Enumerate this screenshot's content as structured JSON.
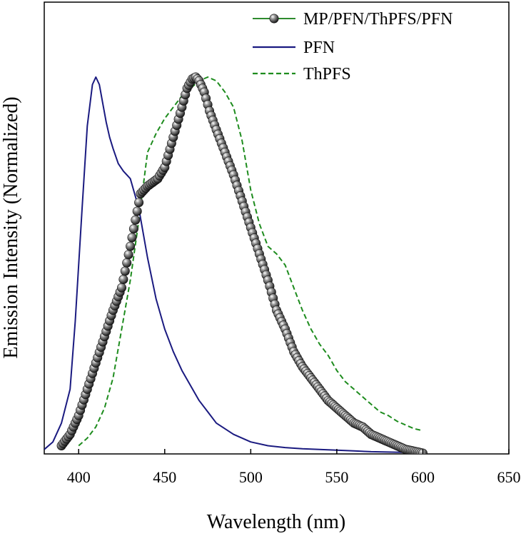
{
  "chart_data": {
    "type": "line",
    "title": "",
    "xlabel": "Wavelength (nm)",
    "ylabel": "Emission Intensity (Normalized)",
    "xlim": [
      380,
      650
    ],
    "ylim": [
      0,
      1.02
    ],
    "xticks": [
      "400",
      "450",
      "500",
      "550",
      "600",
      "650"
    ],
    "grid": false,
    "legend_position": "top-right",
    "series": [
      {
        "name": "MP/PFN/ThPFS/PFN",
        "color": "#3a3a3a",
        "line_color": "#2e8b2e",
        "marker": "sphere",
        "x": [
          390,
          395,
          400,
          405,
          410,
          415,
          420,
          425,
          430,
          433,
          436,
          440,
          443,
          446,
          450,
          455,
          460,
          463,
          466,
          468,
          470,
          473,
          476,
          480,
          485,
          490,
          495,
          500,
          505,
          510,
          515,
          520,
          525,
          530,
          535,
          540,
          545,
          550,
          555,
          560,
          565,
          570,
          575,
          580,
          585,
          590,
          595,
          600
        ],
        "y": [
          0.02,
          0.05,
          0.1,
          0.17,
          0.24,
          0.31,
          0.38,
          0.44,
          0.55,
          0.62,
          0.69,
          0.71,
          0.72,
          0.73,
          0.76,
          0.84,
          0.92,
          0.97,
          0.995,
          1.0,
          0.99,
          0.96,
          0.91,
          0.86,
          0.8,
          0.74,
          0.67,
          0.6,
          0.53,
          0.46,
          0.38,
          0.33,
          0.27,
          0.23,
          0.2,
          0.17,
          0.14,
          0.12,
          0.1,
          0.08,
          0.07,
          0.05,
          0.04,
          0.03,
          0.02,
          0.01,
          0.005,
          0.0
        ]
      },
      {
        "name": "PFN",
        "color": "#1a1a80",
        "x": [
          380,
          385,
          390,
          395,
          398,
          402,
          405,
          408,
          410,
          412,
          414,
          416,
          418,
          420,
          423,
          426,
          430,
          435,
          440,
          445,
          450,
          455,
          460,
          465,
          470,
          475,
          480,
          490,
          500,
          510,
          520,
          530,
          540,
          550,
          560,
          570,
          580,
          590
        ],
        "y": [
          0.01,
          0.03,
          0.08,
          0.17,
          0.35,
          0.65,
          0.87,
          0.98,
          1.0,
          0.98,
          0.93,
          0.88,
          0.84,
          0.81,
          0.77,
          0.75,
          0.73,
          0.65,
          0.52,
          0.41,
          0.33,
          0.27,
          0.22,
          0.18,
          0.14,
          0.11,
          0.08,
          0.05,
          0.03,
          0.02,
          0.015,
          0.012,
          0.01,
          0.008,
          0.006,
          0.004,
          0.003,
          0.002
        ]
      },
      {
        "name": "ThPFS",
        "color": "#1e8c1e",
        "dashed": true,
        "x": [
          400,
          405,
          410,
          415,
          420,
          425,
          430,
          435,
          440,
          445,
          450,
          455,
          460,
          465,
          470,
          475,
          480,
          485,
          490,
          495,
          500,
          505,
          510,
          515,
          520,
          525,
          530,
          535,
          540,
          545,
          550,
          555,
          560,
          565,
          570,
          575,
          580,
          585,
          590,
          595,
          600
        ],
        "y": [
          0.02,
          0.04,
          0.07,
          0.12,
          0.2,
          0.33,
          0.46,
          0.62,
          0.8,
          0.85,
          0.89,
          0.92,
          0.95,
          0.97,
          0.99,
          1.0,
          0.99,
          0.96,
          0.92,
          0.83,
          0.7,
          0.61,
          0.55,
          0.53,
          0.5,
          0.44,
          0.38,
          0.33,
          0.29,
          0.26,
          0.22,
          0.19,
          0.17,
          0.15,
          0.13,
          0.11,
          0.1,
          0.085,
          0.075,
          0.065,
          0.06
        ]
      }
    ]
  }
}
